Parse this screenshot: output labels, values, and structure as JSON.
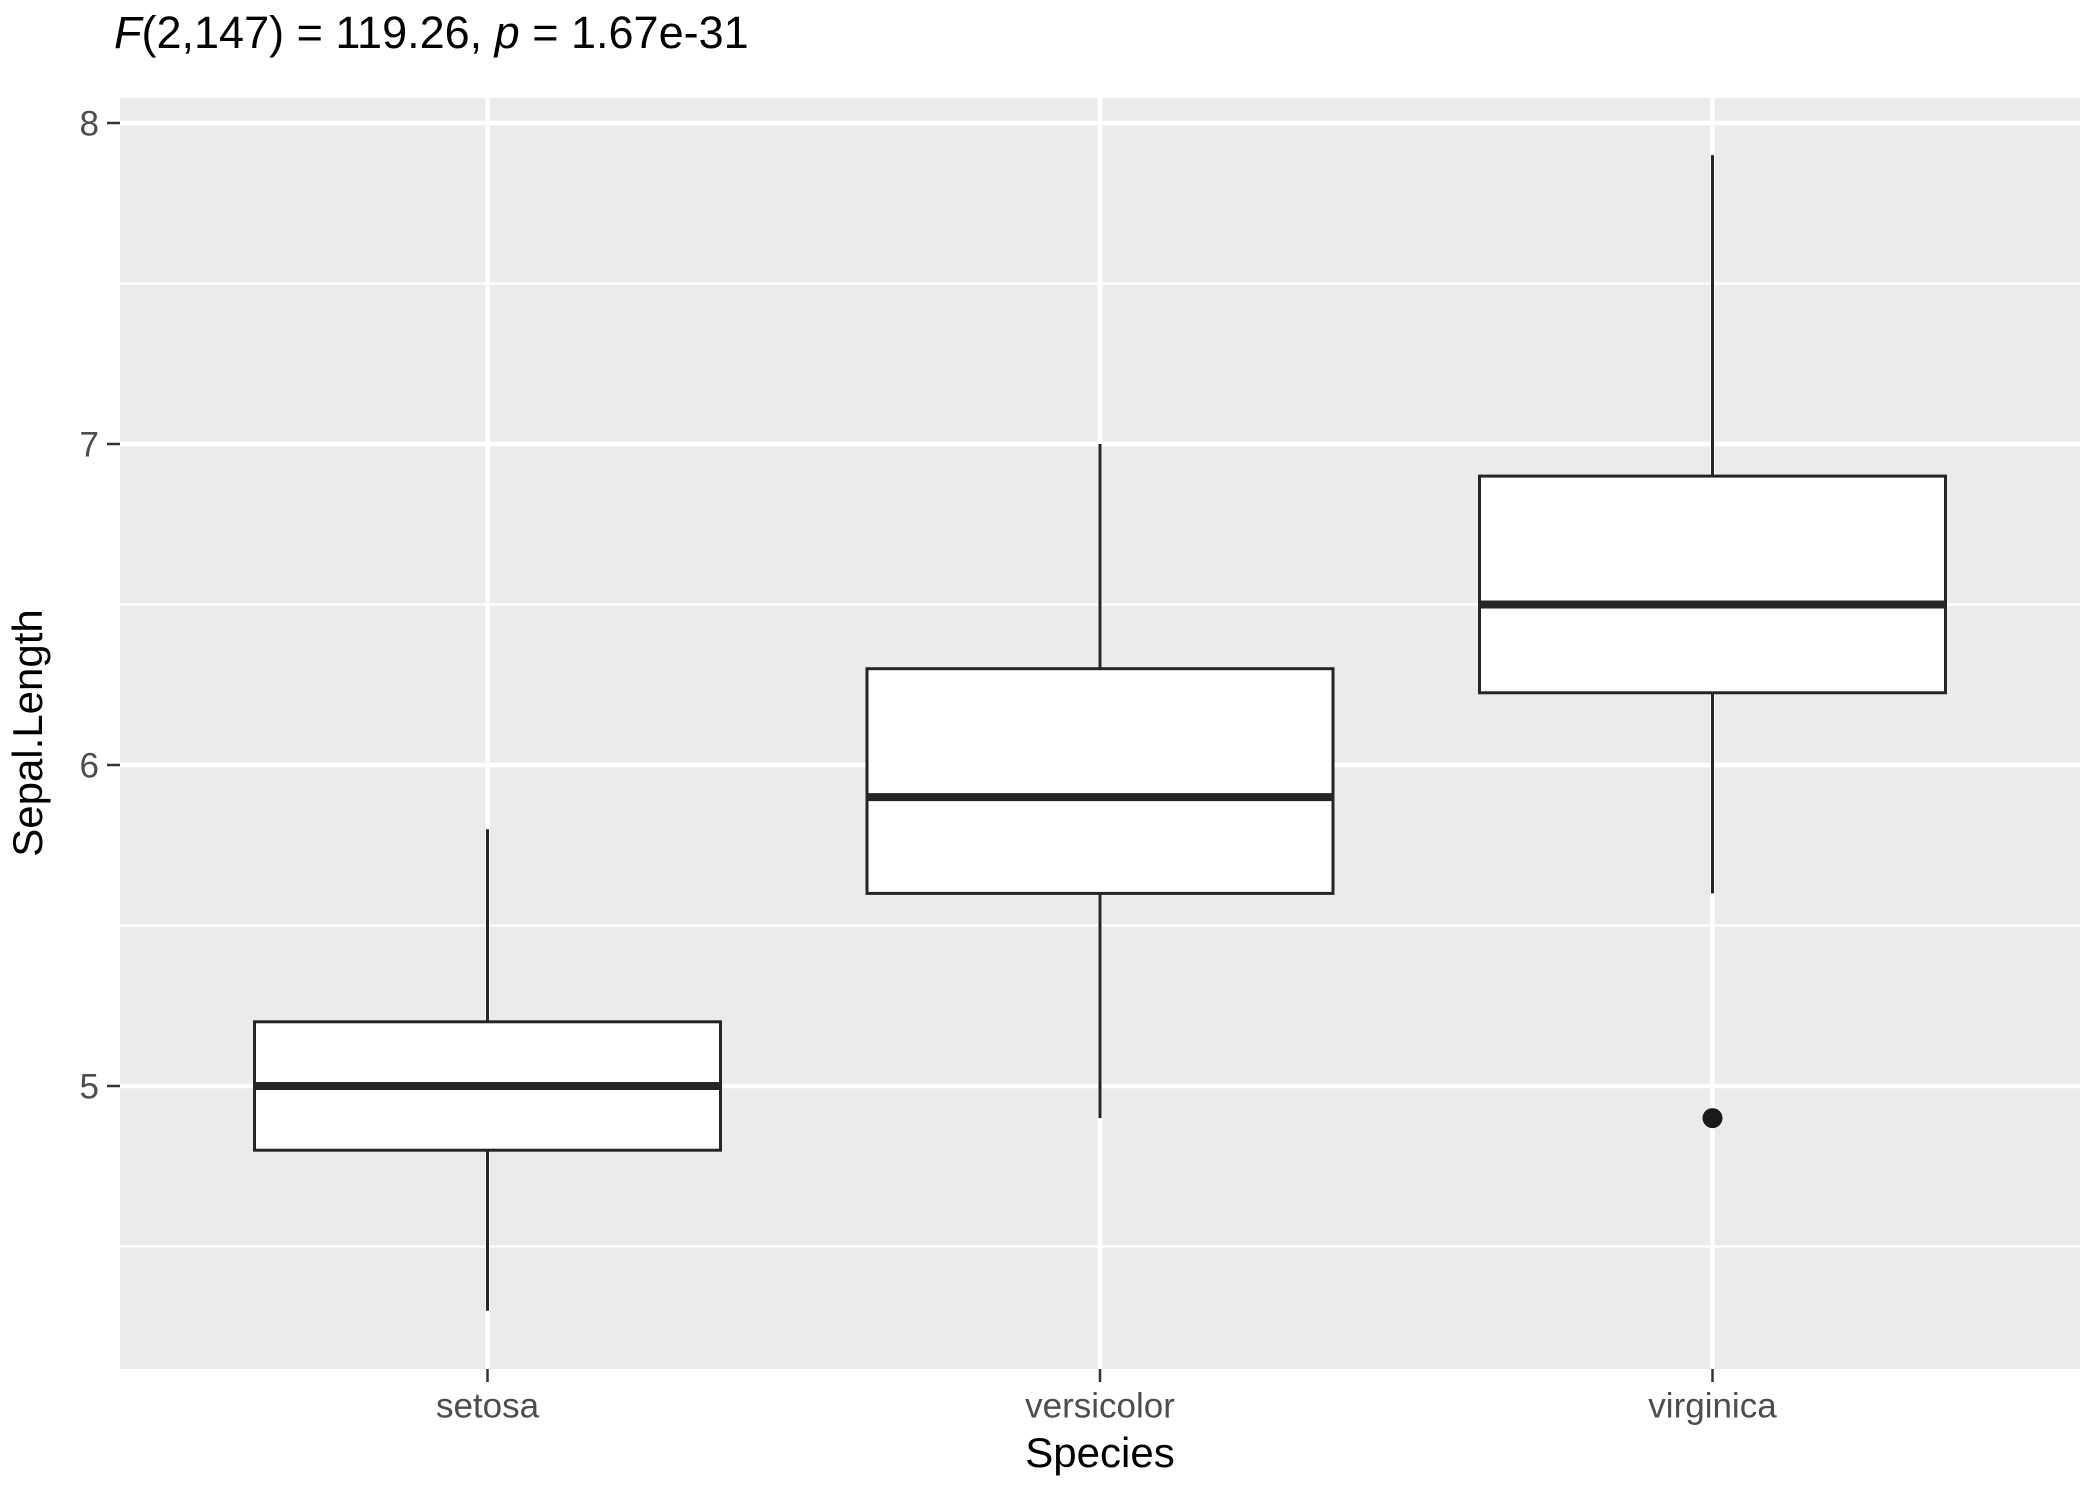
{
  "subtitle": {
    "full": "F(2,147) = 119.26, p = 1.67e-31",
    "parts": [
      {
        "text": "F",
        "italic": true
      },
      {
        "text": "(2,147) = 119.26, ",
        "italic": false
      },
      {
        "text": "p",
        "italic": true
      },
      {
        "text": " = 1.67e-31",
        "italic": false
      }
    ]
  },
  "colors": {
    "panel_background": "#EBEBEB",
    "gridline": "#FFFFFF",
    "box_stroke": "#252525",
    "box_fill": "#FFFFFF",
    "outlier": "#1A1A1A",
    "tick_mark": "#333333",
    "tick_text": "#4D4D4D",
    "axis_title_text": "#000000"
  },
  "chart_data": {
    "type": "boxplot",
    "title": "",
    "subtitle": "F(2,147) = 119.26, p = 1.67e-31",
    "xlabel": "Species",
    "ylabel": "Sepal.Length",
    "categories": [
      "setosa",
      "versicolor",
      "virginica"
    ],
    "y_ticks": [
      5,
      6,
      7,
      8
    ],
    "y_minor_ticks": [
      4.5,
      5.5,
      6.5,
      7.5
    ],
    "ylim": [
      4.12,
      8.08
    ],
    "grid": "on",
    "legend": "none",
    "series": [
      {
        "name": "setosa",
        "whisker_low": 4.3,
        "q1": 4.8,
        "median": 5.0,
        "q3": 5.2,
        "whisker_high": 5.8,
        "outliers": []
      },
      {
        "name": "versicolor",
        "whisker_low": 4.9,
        "q1": 5.6,
        "median": 5.9,
        "q3": 6.3,
        "whisker_high": 7.0,
        "outliers": []
      },
      {
        "name": "virginica",
        "whisker_low": 5.6,
        "q1": 6.225,
        "median": 6.5,
        "q3": 6.9,
        "whisker_high": 7.9,
        "outliers": [
          4.9
        ]
      }
    ]
  }
}
